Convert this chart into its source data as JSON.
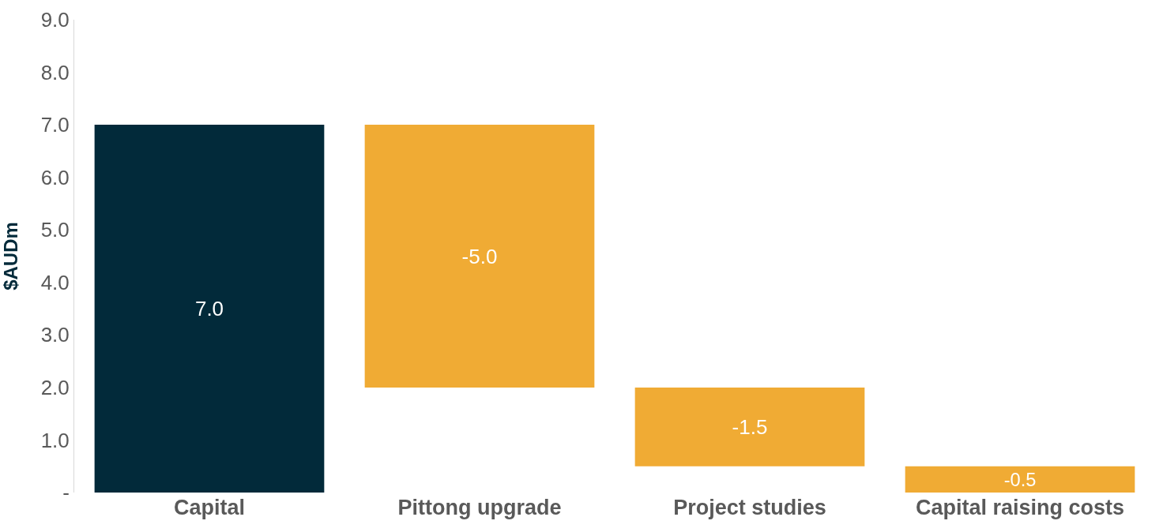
{
  "chart_data": {
    "type": "bar",
    "ylabel": "$AUDm",
    "categories": [
      "Capital",
      "Pittong upgrade",
      "Project studies",
      "Capital raising costs"
    ],
    "values": [
      7.0,
      -5.0,
      -1.5,
      -0.5
    ],
    "base": [
      0,
      7.0,
      2.0,
      0.5
    ],
    "colors": [
      "#022a3a",
      "#f0ab34",
      "#f0ab34",
      "#f0ab34"
    ],
    "value_labels": [
      "7.0",
      "-5.0",
      "-1.5",
      "-0.5"
    ],
    "ylim": [
      0,
      9
    ],
    "yticks": [
      {
        "value": 0,
        "label": "-"
      },
      {
        "value": 1,
        "label": "1.0"
      },
      {
        "value": 2,
        "label": "2.0"
      },
      {
        "value": 3,
        "label": "3.0"
      },
      {
        "value": 4,
        "label": "4.0"
      },
      {
        "value": 5,
        "label": "5.0"
      },
      {
        "value": 6,
        "label": "6.0"
      },
      {
        "value": 7,
        "label": "7.0"
      },
      {
        "value": 8,
        "label": "8.0"
      },
      {
        "value": 9,
        "label": "9.0"
      }
    ],
    "legend": false
  }
}
